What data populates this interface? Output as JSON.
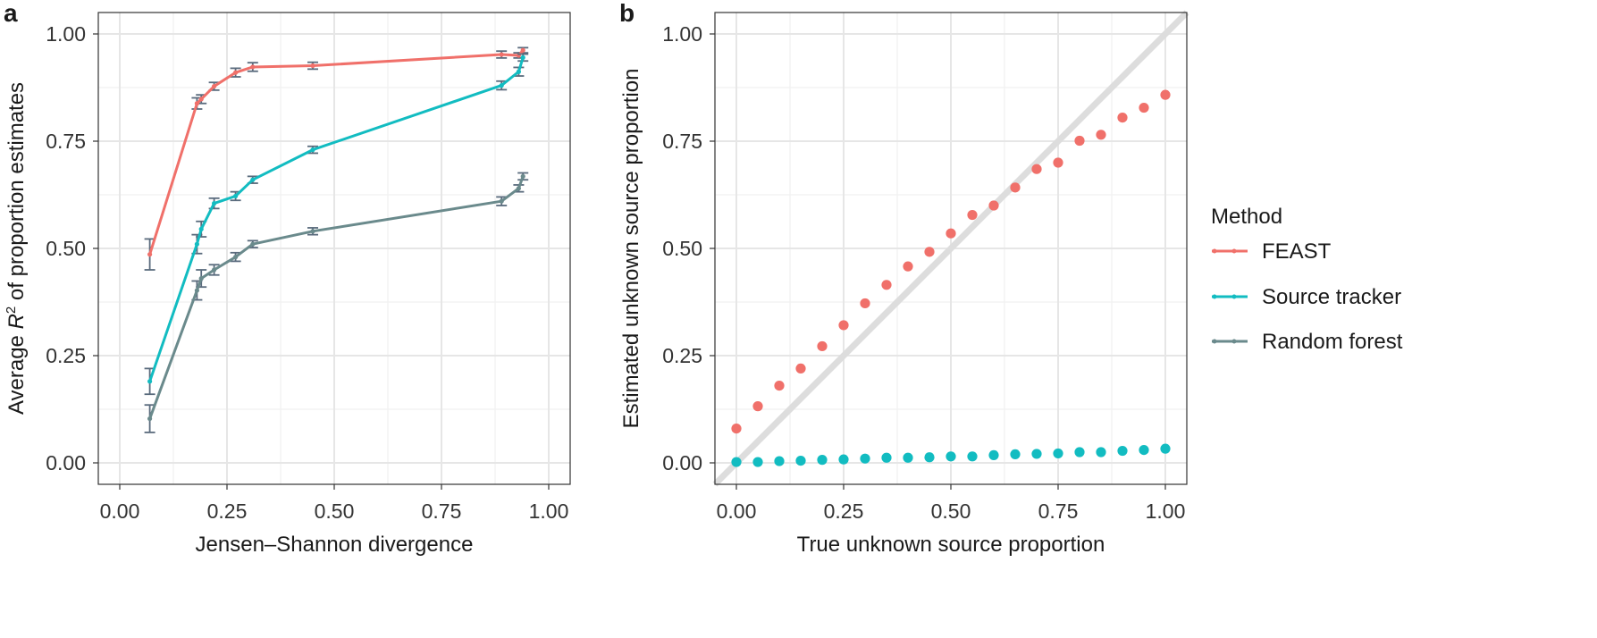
{
  "colors": {
    "feast": "#F0706A",
    "source_tracker": "#12BCC1",
    "random_forest": "#6A8A8C",
    "errorbar": "#5A6B7D",
    "grid_major": "#E6E6E6",
    "grid_minor": "#F1F1F1",
    "identity_line": "#DDDDDD"
  },
  "legend": {
    "title": "Method",
    "items": [
      {
        "label": "FEAST",
        "color_key": "feast"
      },
      {
        "label": "Source tracker",
        "color_key": "source_tracker"
      },
      {
        "label": "Random forest",
        "color_key": "random_forest"
      }
    ]
  },
  "chart_data": [
    {
      "panel": "a",
      "type": "line",
      "xlabel": "Jensen–Shannon divergence",
      "ylabel_prefix": "Average ",
      "ylabel_var": "R",
      "ylabel_sup": "2",
      "ylabel_suffix": " of proportion estimates",
      "xlim": [
        -0.05,
        1.05
      ],
      "ylim": [
        -0.05,
        1.05
      ],
      "xticks": [
        "0.00",
        "0.25",
        "0.50",
        "0.75",
        "1.00"
      ],
      "yticks": [
        "0.00",
        "0.25",
        "0.50",
        "0.75",
        "1.00"
      ],
      "grid": true,
      "error_bars": true,
      "series": [
        {
          "name": "FEAST",
          "color_key": "feast",
          "x": [
            0.07,
            0.18,
            0.19,
            0.22,
            0.27,
            0.31,
            0.45,
            0.89,
            0.93,
            0.94
          ],
          "y": [
            0.486,
            0.838,
            0.848,
            0.878,
            0.91,
            0.923,
            0.926,
            0.952,
            0.95,
            0.962
          ],
          "err": [
            0.036,
            0.013,
            0.01,
            0.009,
            0.01,
            0.01,
            0.008,
            0.008,
            0.006,
            0.006
          ]
        },
        {
          "name": "Source tracker",
          "color_key": "source_tracker",
          "x": [
            0.07,
            0.18,
            0.19,
            0.22,
            0.27,
            0.31,
            0.45,
            0.89,
            0.93,
            0.94
          ],
          "y": [
            0.19,
            0.51,
            0.545,
            0.605,
            0.622,
            0.66,
            0.73,
            0.88,
            0.912,
            0.945
          ],
          "err": [
            0.03,
            0.022,
            0.018,
            0.012,
            0.01,
            0.008,
            0.008,
            0.01,
            0.01,
            0.008
          ]
        },
        {
          "name": "Random forest",
          "color_key": "random_forest",
          "x": [
            0.07,
            0.18,
            0.19,
            0.22,
            0.27,
            0.31,
            0.45,
            0.89,
            0.93,
            0.94
          ],
          "y": [
            0.103,
            0.402,
            0.43,
            0.45,
            0.48,
            0.51,
            0.54,
            0.61,
            0.64,
            0.668
          ],
          "err": [
            0.032,
            0.022,
            0.02,
            0.012,
            0.01,
            0.008,
            0.008,
            0.01,
            0.008,
            0.008
          ]
        }
      ]
    },
    {
      "panel": "b",
      "type": "scatter",
      "xlabel": "True unknown source proportion",
      "ylabel": "Estimated unknown source proportion",
      "xlim": [
        -0.05,
        1.05
      ],
      "ylim": [
        -0.05,
        1.05
      ],
      "xticks": [
        "0.00",
        "0.25",
        "0.50",
        "0.75",
        "1.00"
      ],
      "yticks": [
        "0.00",
        "0.25",
        "0.50",
        "0.75",
        "1.00"
      ],
      "grid": true,
      "identity_line": true,
      "series": [
        {
          "name": "FEAST",
          "color_key": "feast",
          "x": [
            0.0,
            0.05,
            0.1,
            0.15,
            0.2,
            0.25,
            0.3,
            0.35,
            0.4,
            0.45,
            0.5,
            0.55,
            0.6,
            0.65,
            0.7,
            0.75,
            0.8,
            0.85,
            0.9,
            0.95,
            1.0
          ],
          "y": [
            0.08,
            0.132,
            0.18,
            0.22,
            0.272,
            0.321,
            0.372,
            0.415,
            0.458,
            0.492,
            0.535,
            0.578,
            0.6,
            0.642,
            0.685,
            0.7,
            0.751,
            0.765,
            0.805,
            0.828,
            0.858
          ]
        },
        {
          "name": "Source tracker",
          "color_key": "source_tracker",
          "x": [
            0.0,
            0.05,
            0.1,
            0.15,
            0.2,
            0.25,
            0.3,
            0.35,
            0.4,
            0.45,
            0.5,
            0.55,
            0.6,
            0.65,
            0.7,
            0.75,
            0.8,
            0.85,
            0.9,
            0.95,
            1.0
          ],
          "y": [
            0.002,
            0.002,
            0.004,
            0.005,
            0.007,
            0.008,
            0.01,
            0.012,
            0.012,
            0.013,
            0.015,
            0.015,
            0.018,
            0.02,
            0.021,
            0.022,
            0.025,
            0.025,
            0.028,
            0.03,
            0.033
          ]
        }
      ]
    }
  ]
}
